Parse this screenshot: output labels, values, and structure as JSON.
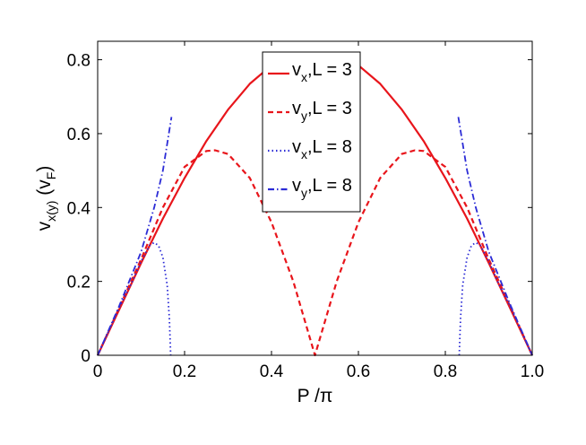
{
  "chart_data": {
    "type": "line",
    "title": "",
    "xlabel": "P /π",
    "ylabel": {
      "main": "v",
      "main_sub": "x(y)",
      "unit_open": " (v",
      "unit_sub": "F",
      "unit_close": ")"
    },
    "xlim": [
      0,
      1
    ],
    "ylim": [
      0,
      0.85
    ],
    "xticks": [
      0,
      0.2,
      0.4,
      0.6,
      0.8,
      1
    ],
    "xtick_labels": [
      "0",
      "0.2",
      "0.4",
      "0.6",
      "0.8",
      "1.0"
    ],
    "yticks": [
      0,
      0.2,
      0.4,
      0.6,
      0.8
    ],
    "ytick_labels": [
      "0",
      "0.2",
      "0.4",
      "0.6",
      "0.8"
    ],
    "grid": false,
    "legend_position": "top-center",
    "series": [
      {
        "name": "v_x, L = 3",
        "legend": {
          "base": "v",
          "sub": "x",
          "rest": ",L = 3"
        },
        "color": "#e8151b",
        "style": "solid",
        "x": [
          0,
          0.05,
          0.1,
          0.15,
          0.2,
          0.25,
          0.3,
          0.35,
          0.4,
          0.45,
          0.5,
          0.55,
          0.6,
          0.65,
          0.7,
          0.75,
          0.8,
          0.85,
          0.9,
          0.95,
          1.0
        ],
        "y": [
          0,
          0.125,
          0.25,
          0.37,
          0.48,
          0.58,
          0.665,
          0.735,
          0.785,
          0.81,
          0.815,
          0.81,
          0.785,
          0.735,
          0.665,
          0.58,
          0.48,
          0.37,
          0.25,
          0.125,
          0
        ]
      },
      {
        "name": "v_y, L = 3",
        "legend": {
          "base": "v",
          "sub": "y",
          "rest": ",L = 3"
        },
        "color": "#e8151b",
        "style": "dashed",
        "x": [
          0,
          0.05,
          0.1,
          0.15,
          0.2,
          0.25,
          0.27,
          0.3,
          0.35,
          0.4,
          0.45,
          0.5,
          0.55,
          0.6,
          0.65,
          0.7,
          0.73,
          0.75,
          0.8,
          0.85,
          0.9,
          0.95,
          1.0
        ],
        "y": [
          0,
          0.13,
          0.26,
          0.4,
          0.51,
          0.553,
          0.555,
          0.545,
          0.48,
          0.36,
          0.2,
          0,
          0.2,
          0.36,
          0.48,
          0.545,
          0.555,
          0.553,
          0.51,
          0.4,
          0.26,
          0.13,
          0
        ]
      },
      {
        "name": "v_x, L = 8",
        "legend": {
          "base": "v",
          "sub": "x",
          "rest": ",L = 8"
        },
        "color": "#2b2bd6",
        "style": "dotted",
        "x": [
          0,
          0.05,
          0.08,
          0.1,
          0.12,
          0.13,
          0.14,
          0.15,
          0.16,
          0.165,
          0.168,
          null,
          0.832,
          0.835,
          0.84,
          0.85,
          0.86,
          0.87,
          0.88,
          0.9,
          0.92,
          0.95,
          1.0
        ],
        "y": [
          0,
          0.13,
          0.2,
          0.255,
          0.298,
          0.305,
          0.297,
          0.265,
          0.19,
          0.1,
          0,
          null,
          0,
          0.1,
          0.19,
          0.265,
          0.297,
          0.305,
          0.298,
          0.255,
          0.2,
          0.13,
          0
        ]
      },
      {
        "name": "v_y, L = 8",
        "legend": {
          "base": "v",
          "sub": "y",
          "rest": ",L = 8"
        },
        "color": "#2b2bd6",
        "style": "dashdot",
        "x": [
          0,
          0.05,
          0.1,
          0.13,
          0.15,
          0.17,
          null,
          0.83,
          0.85,
          0.87,
          0.9,
          0.95,
          1.0
        ],
        "y": [
          0,
          0.135,
          0.28,
          0.4,
          0.5,
          0.645,
          null,
          0.645,
          0.5,
          0.4,
          0.28,
          0.135,
          0
        ]
      }
    ]
  }
}
